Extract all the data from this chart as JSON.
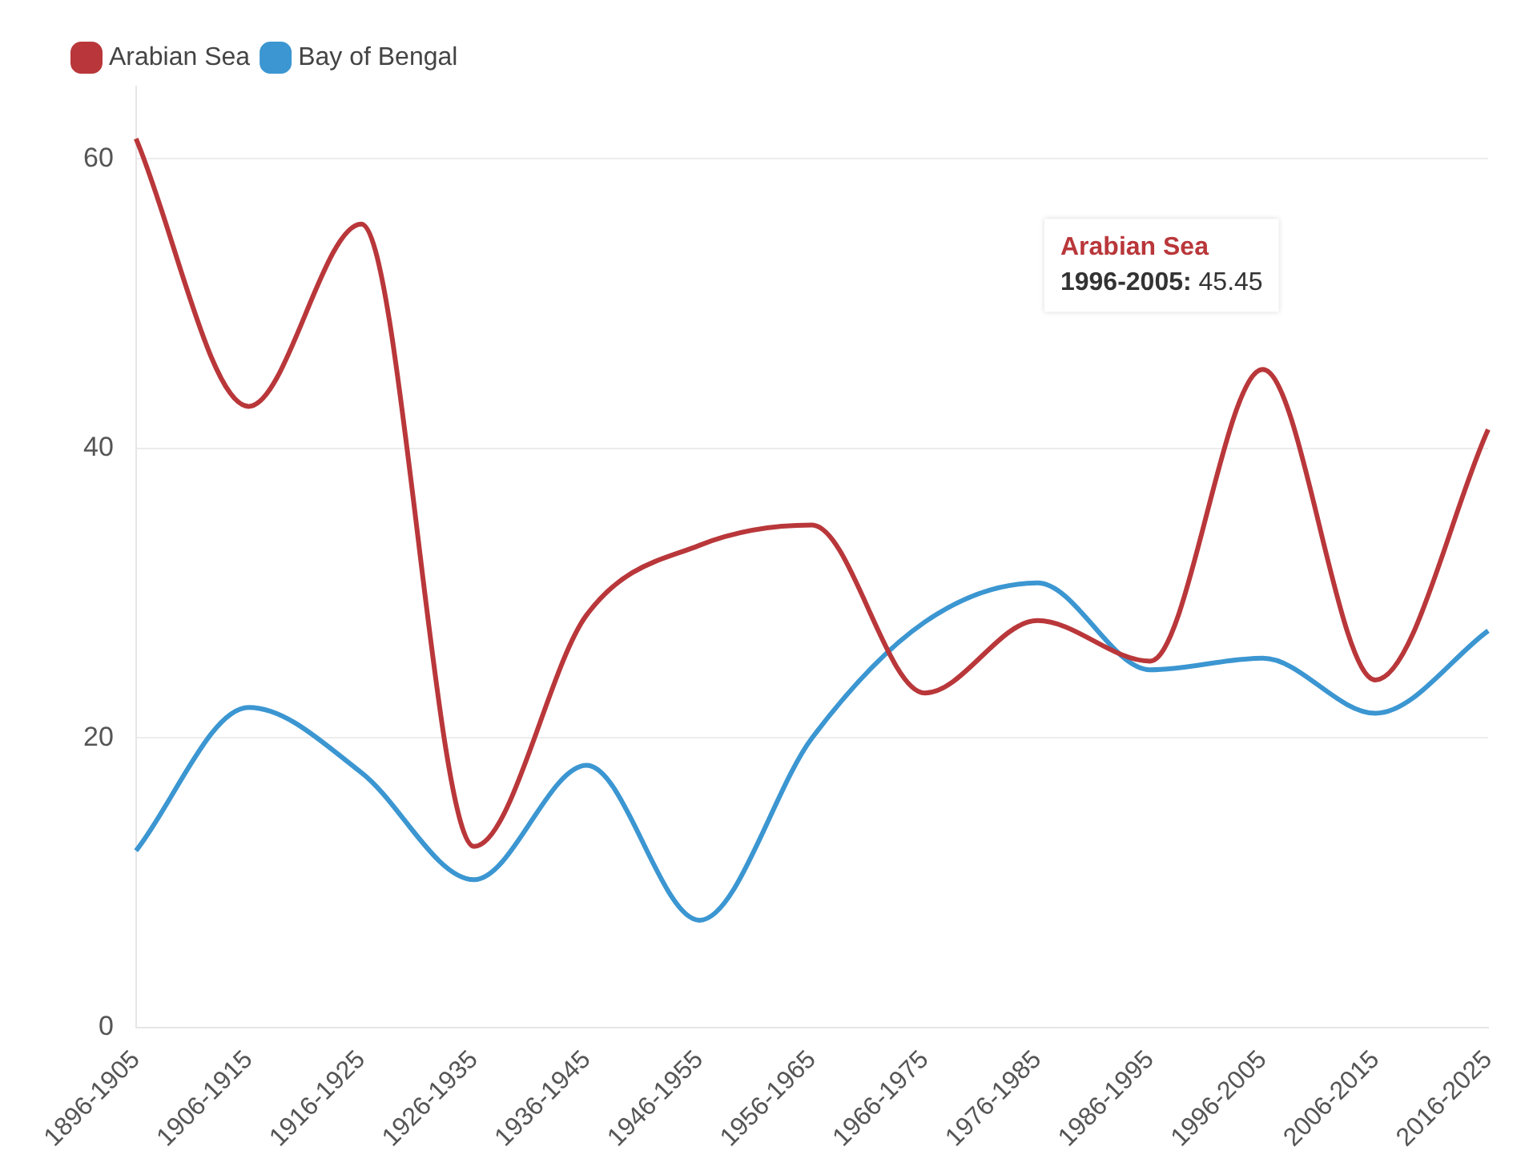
{
  "chart_data": {
    "type": "line",
    "categories": [
      "1896-1905",
      "1906-1915",
      "1916-1925",
      "1926-1935",
      "1936-1945",
      "1946-1955",
      "1956-1965",
      "1966-1975",
      "1976-1985",
      "1986-1995",
      "1996-2005",
      "2006-2015",
      "2016-2025"
    ],
    "series": [
      {
        "name": "Arabian Sea",
        "color": "#b9373a",
        "values": [
          61.4,
          42.9,
          55.5,
          12.5,
          28.5,
          33.3,
          34.7,
          23.1,
          28.1,
          25.3,
          45.45,
          24.0,
          41.3
        ]
      },
      {
        "name": "Bay of Bengal",
        "color": "#3b96d1",
        "values": [
          12.2,
          22.1,
          17.6,
          10.2,
          18.1,
          7.4,
          20.0,
          28.0,
          30.7,
          24.7,
          25.5,
          21.7,
          27.4
        ]
      }
    ],
    "ylim": [
      0,
      65
    ],
    "yticks": [
      0,
      20,
      40,
      60
    ],
    "grid": "y",
    "legend": "top left",
    "marker": "none",
    "line_style": "solid",
    "annotations": [
      {
        "text": "Arabian Sea\n1996-2005: 45.45",
        "x": "1996-2005",
        "y": 45.45
      }
    ]
  }
}
